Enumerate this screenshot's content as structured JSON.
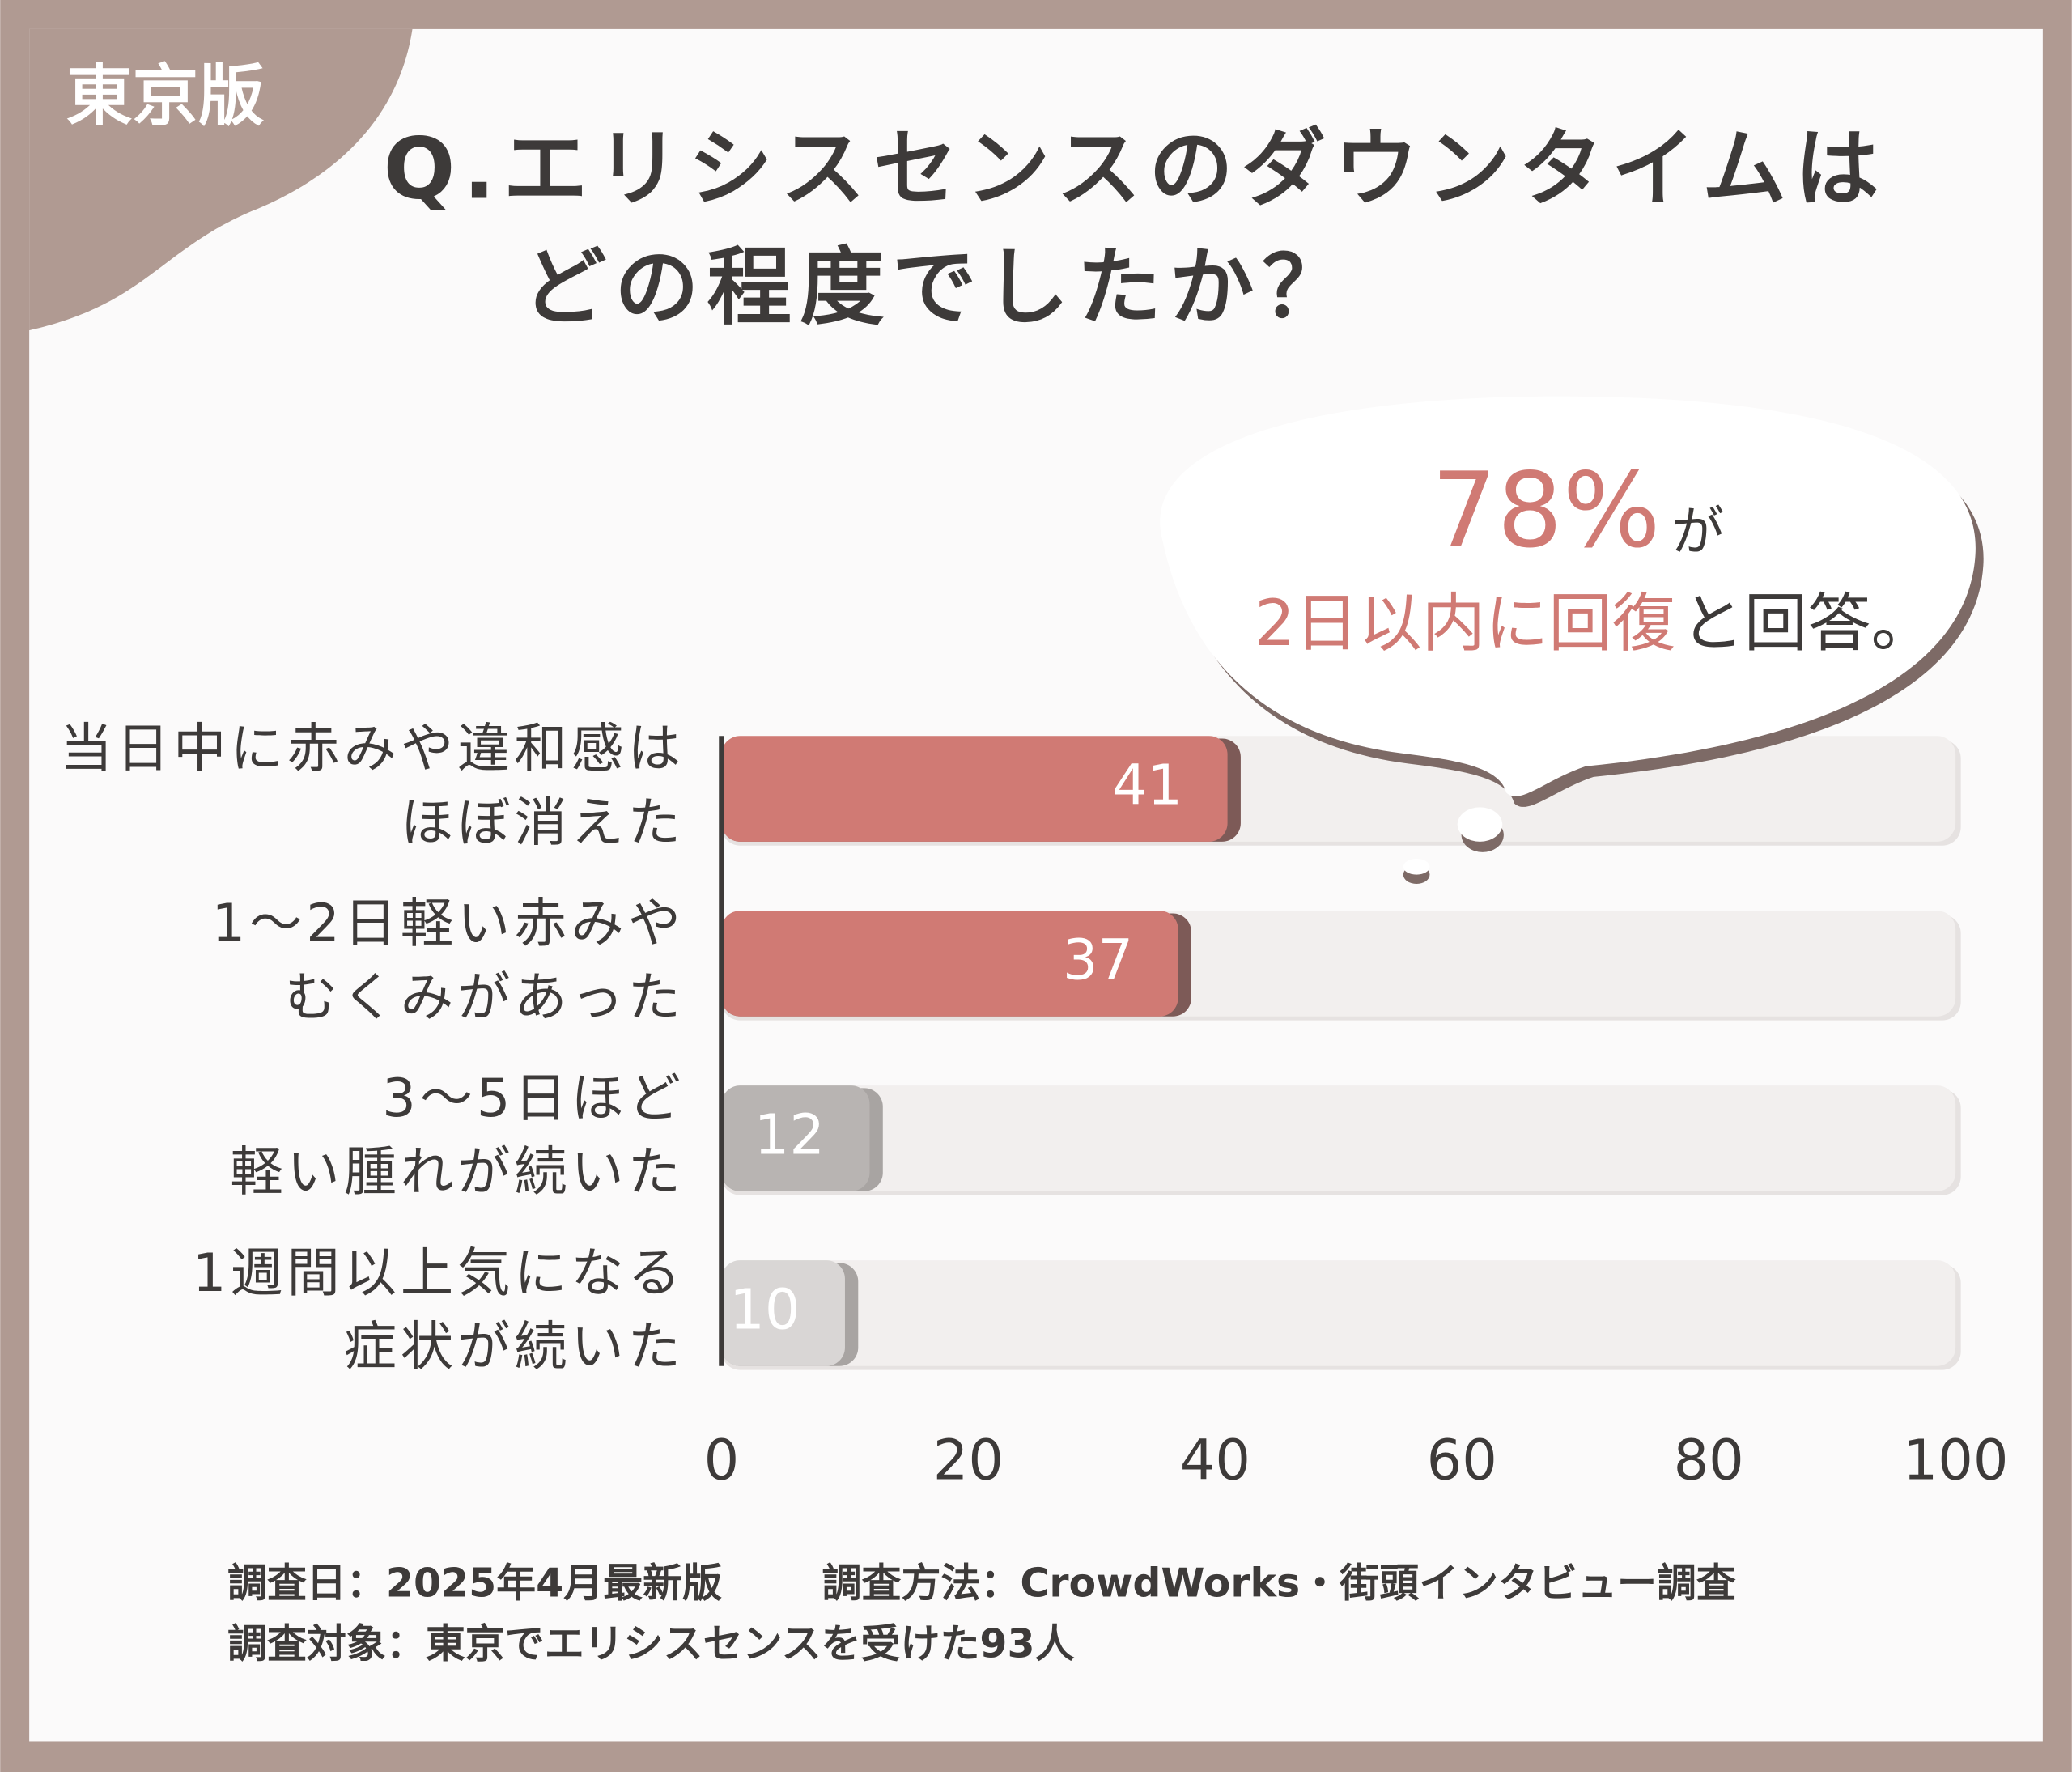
{
  "badge": "東京版",
  "chart_data": {
    "type": "hbar",
    "title": [
      "Q.エリシスセンスのダウンタイムは",
      "どの程度でしたか？"
    ],
    "categories": [
      [
        "当日中に赤みや違和感は",
        "ほぼ消えた"
      ],
      [
        "1〜2日軽い赤みや",
        "むくみがあった"
      ],
      [
        "3〜5日ほど",
        "軽い腫れが続いた"
      ],
      [
        "1週間以上気になる",
        "症状が続いた"
      ]
    ],
    "values": [
      41,
      37,
      12,
      10
    ],
    "colors": [
      "#d07a74",
      "#d07a74",
      "#b8b4b2",
      "#d9d6d5"
    ],
    "xlim": [
      0,
      100
    ],
    "xticks": [
      0,
      20,
      40,
      60,
      80,
      100
    ],
    "annotation": {
      "highlight": "78%",
      "particle": "が",
      "emphasis": "2日以内に回復",
      "rest": "と回答。"
    }
  },
  "footnotes": [
    "調査日：2025年4月最新版",
    "調査方法：CrowdWorks・街頭インタビュー調査",
    "調査対象：東京でエリシスセンスを受けた93人"
  ]
}
